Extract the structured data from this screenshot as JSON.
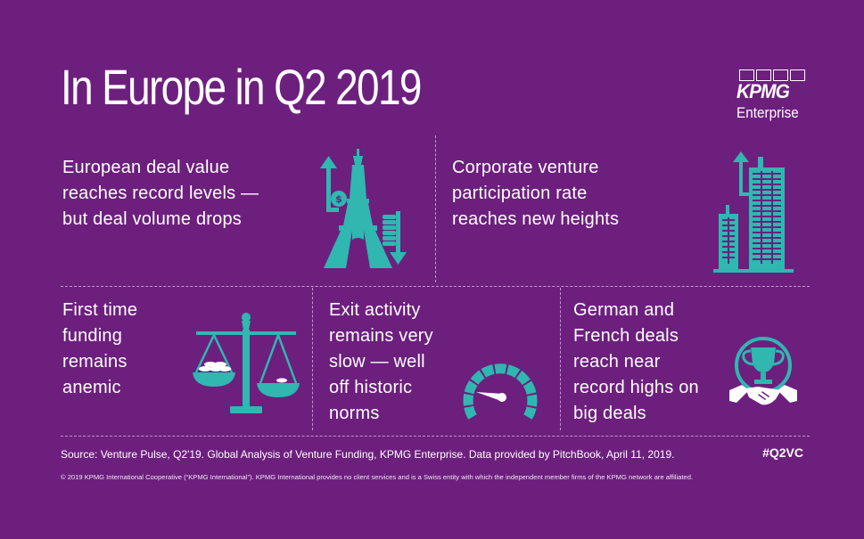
{
  "title": "In Europe in Q2 2019",
  "logo": {
    "wordmark": "KPMG",
    "subtitle": "Enterprise"
  },
  "panels": [
    {
      "text": "European deal value\nreaches record levels —\nbut deal volume drops",
      "icon": "eiffel-tower-icon"
    },
    {
      "text": "Corporate venture\nparticipation rate\nreaches new heights",
      "icon": "skyscraper-icon"
    },
    {
      "text": "First time\nfunding\nremains\nanemic",
      "icon": "balance-scale-icon"
    },
    {
      "text": "Exit activity\nremains very\nslow — well\noff historic\nnorms",
      "icon": "speedometer-icon"
    },
    {
      "text": "German and\nFrench deals\nreach near\nrecord highs on\nbig deals",
      "icon": "trophy-handshake-icon"
    }
  ],
  "footer": {
    "source": "Source: Venture Pulse, Q2'19. Global Analysis of Venture Funding, KPMG Enterprise. Data provided by PitchBook, April 11, 2019.",
    "hashtag": "#Q2VC",
    "copyright": "© 2019 KPMG International Cooperative (“KPMG International”). KPMG International provides no client services and is a Swiss entity with which the independent member firms of the KPMG network are affiliated."
  },
  "colors": {
    "background": "#6d1f7e",
    "icon": "#2fb7b0",
    "text": "#ffffff"
  }
}
